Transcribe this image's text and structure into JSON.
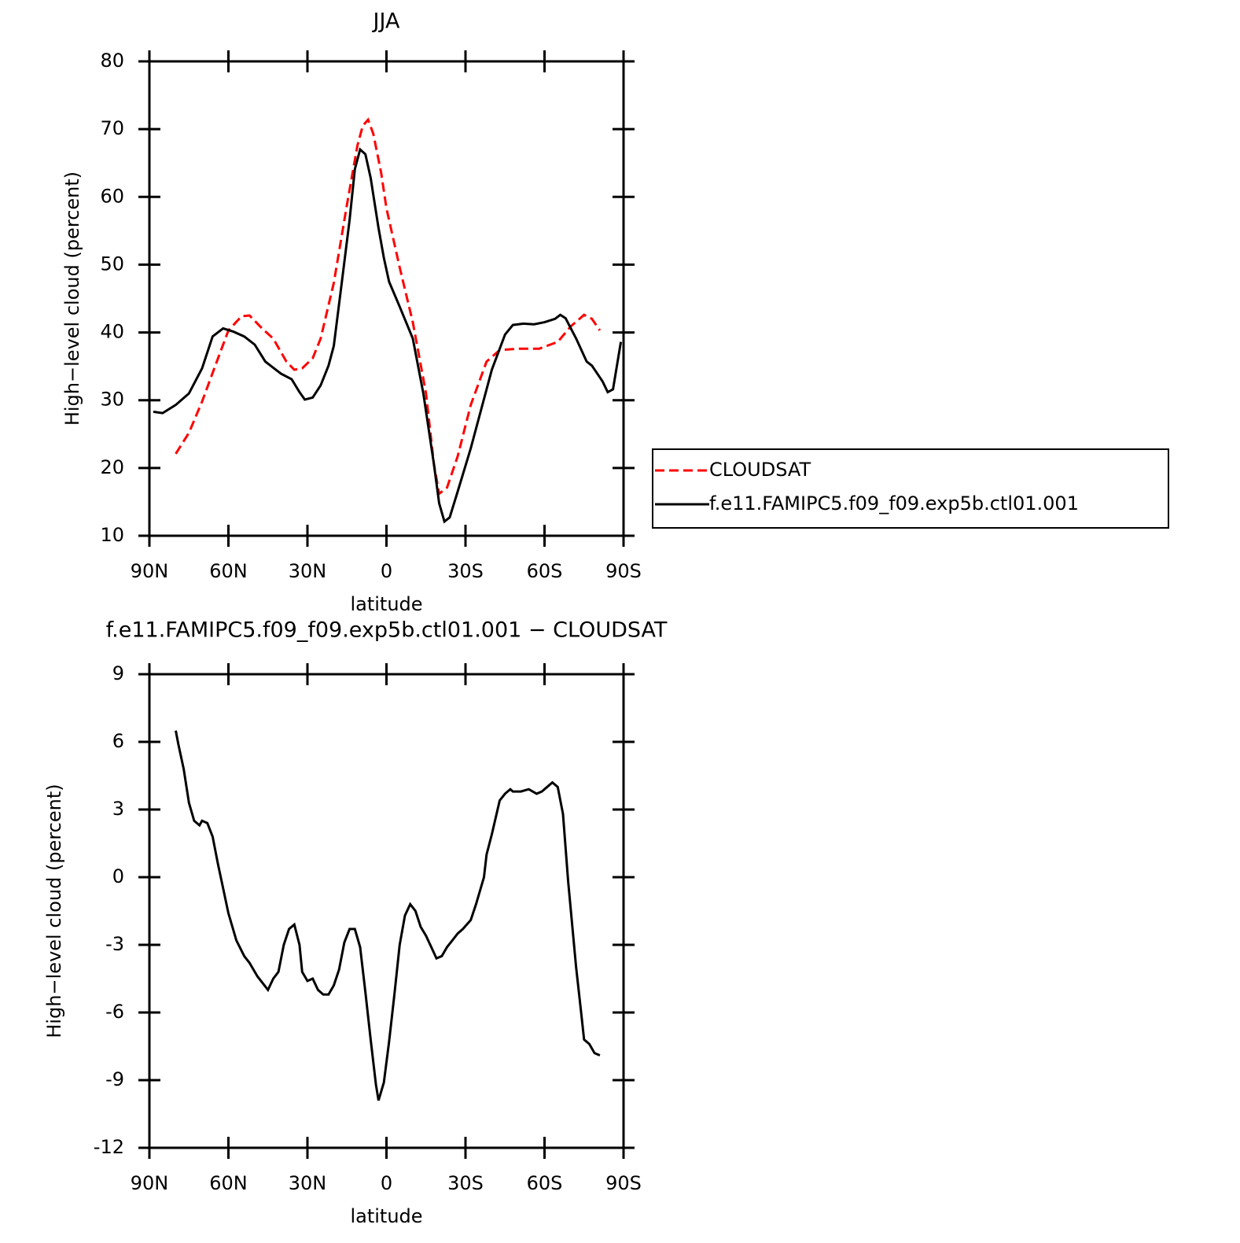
{
  "chart_data": [
    {
      "type": "line",
      "title": "JJA",
      "xlabel": "latitude",
      "ylabel": "High−level cloud (percent)",
      "xlim": [
        90,
        -90
      ],
      "xticks": [
        {
          "value": 90,
          "label": "90N"
        },
        {
          "value": 60,
          "label": "60N"
        },
        {
          "value": 30,
          "label": "30N"
        },
        0,
        {
          "value": -30,
          "label": "30S"
        },
        {
          "value": -60,
          "label": "60S"
        },
        {
          "value": -90,
          "label": "90S"
        }
      ],
      "ylim": [
        10,
        80
      ],
      "yticks": [
        10,
        20,
        30,
        40,
        50,
        60,
        70,
        80
      ],
      "legend": "right",
      "series": [
        {
          "name": "CLOUDSAT",
          "color": "#ff0000",
          "style": "dashed",
          "x": [
            80,
            75,
            70,
            65,
            60,
            55,
            52,
            47,
            43,
            38,
            35,
            32,
            28,
            25,
            20,
            15,
            11,
            9,
            7,
            5,
            2,
            0,
            -5,
            -10,
            -15,
            -18,
            -20,
            -23,
            -27,
            -32,
            -38,
            -43,
            -50,
            -58,
            -65,
            -70,
            -75,
            -78,
            -81
          ],
          "values": [
            22.1,
            25.2,
            29.8,
            35.1,
            40.3,
            42.4,
            42.5,
            40.5,
            39.1,
            35.7,
            34.5,
            34.7,
            36.2,
            39.1,
            47.3,
            58.9,
            67.6,
            70.5,
            71.4,
            69.3,
            63.5,
            58.3,
            49.6,
            41.5,
            31.0,
            20.6,
            16.2,
            17.1,
            21.7,
            29.3,
            35.7,
            37.4,
            37.6,
            37.6,
            38.6,
            40.9,
            42.6,
            42.0,
            40.3
          ]
        },
        {
          "name": "f.e11.FAMIPC5.f09_f09.exp5b.ctl01.001",
          "color": "#000000",
          "style": "solid",
          "x": [
            88.5,
            85,
            80,
            75,
            70,
            66,
            62,
            58,
            54,
            50,
            46,
            43,
            40,
            36,
            33,
            31,
            28,
            25,
            22,
            20,
            17,
            14,
            12,
            10,
            8,
            6,
            3,
            1,
            -1,
            -5,
            -10,
            -14,
            -18,
            -20,
            -22,
            -24,
            -27,
            -32,
            -36,
            -40,
            -45,
            -48,
            -52,
            -56,
            -60,
            -64,
            -66,
            -68,
            -72,
            -76,
            -78,
            -82,
            -84,
            -86,
            -89
          ],
          "values": [
            28.3,
            28.1,
            29.3,
            31.0,
            34.7,
            39.4,
            40.6,
            40.1,
            39.4,
            38.2,
            35.7,
            34.8,
            33.9,
            33.1,
            31.2,
            30.1,
            30.4,
            32.2,
            35.1,
            38.0,
            47.3,
            56.6,
            64.1,
            67.0,
            66.3,
            62.8,
            55.4,
            51.0,
            47.5,
            43.8,
            39.1,
            31.0,
            20.6,
            14.8,
            12.1,
            12.7,
            16.5,
            22.9,
            28.7,
            34.5,
            39.7,
            41.1,
            41.3,
            41.2,
            41.5,
            42.0,
            42.6,
            42.1,
            39.1,
            35.7,
            35.1,
            32.8,
            31.2,
            31.6,
            38.6
          ]
        }
      ]
    },
    {
      "type": "line",
      "title": "f.e11.FAMIPC5.f09_f09.exp5b.ctl01.001 − CLOUDSAT",
      "xlabel": "latitude",
      "ylabel": "High−level cloud (percent)",
      "xlim": [
        90,
        -90
      ],
      "xticks": [
        {
          "value": 90,
          "label": "90N"
        },
        {
          "value": 60,
          "label": "60N"
        },
        {
          "value": 30,
          "label": "30N"
        },
        0,
        {
          "value": -30,
          "label": "30S"
        },
        {
          "value": -60,
          "label": "60S"
        },
        {
          "value": -90,
          "label": "90S"
        }
      ],
      "ylim": [
        -12,
        9
      ],
      "yticks": [
        -12,
        -9,
        -6,
        -3,
        0,
        3,
        6,
        9
      ],
      "series": [
        {
          "color": "#000000",
          "style": "solid",
          "x": [
            80,
            79,
            77,
            75,
            73,
            71,
            70,
            68,
            66,
            64,
            62,
            60,
            57,
            54,
            52,
            49,
            47,
            45,
            43,
            41,
            39,
            37,
            35,
            33,
            32,
            30,
            28,
            26,
            24,
            22,
            20,
            18,
            16,
            14,
            12,
            10,
            8,
            6,
            4,
            3,
            1,
            -1,
            -3,
            -5,
            -7,
            -9,
            -11,
            -13,
            -15,
            -17,
            -19,
            -21,
            -23,
            -25,
            -27,
            -29,
            -32,
            -34,
            -37,
            -38,
            -40,
            -43,
            -45,
            -47,
            -48,
            -51,
            -54,
            -57,
            -59,
            -60,
            -63,
            -65,
            -67,
            -69,
            -72,
            -74,
            -75,
            -77,
            -79,
            -81
          ],
          "values": [
            6.5,
            5.9,
            4.8,
            3.3,
            2.5,
            2.3,
            2.5,
            2.4,
            1.8,
            0.6,
            -0.5,
            -1.6,
            -2.8,
            -3.5,
            -3.8,
            -4.4,
            -4.7,
            -5.0,
            -4.5,
            -4.2,
            -3.0,
            -2.3,
            -2.1,
            -3.0,
            -4.2,
            -4.6,
            -4.5,
            -5.0,
            -5.2,
            -5.2,
            -4.8,
            -4.1,
            -2.9,
            -2.3,
            -2.3,
            -3.1,
            -5.1,
            -7.2,
            -9.2,
            -9.9,
            -9.1,
            -7.3,
            -5.2,
            -3.0,
            -1.7,
            -1.2,
            -1.5,
            -2.2,
            -2.6,
            -3.1,
            -3.6,
            -3.5,
            -3.1,
            -2.8,
            -2.5,
            -2.3,
            -1.9,
            -1.2,
            0.0,
            1.0,
            1.9,
            3.4,
            3.7,
            3.9,
            3.8,
            3.8,
            3.9,
            3.7,
            3.8,
            3.9,
            4.2,
            4.0,
            2.8,
            -0.2,
            -4.0,
            -6.1,
            -7.2,
            -7.4,
            -7.8,
            -7.9
          ]
        }
      ]
    }
  ]
}
